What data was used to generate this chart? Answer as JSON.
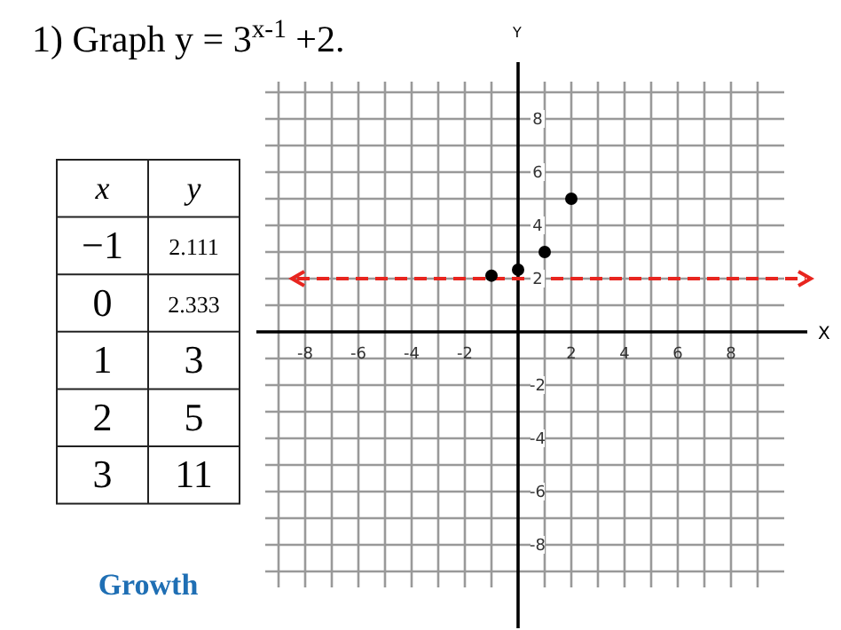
{
  "chart_data": {
    "type": "scatter",
    "title": "1) Graph y = 3$^{x-1}$ +2.",
    "xlabel": "X",
    "ylabel": "Y",
    "x": [
      -1,
      0,
      1,
      2
    ],
    "series": [
      {
        "color": "#000000",
        "values": [
          2.111,
          2.333,
          3,
          5
        ]
      }
    ],
    "xlim": [
      -9.5,
      10
    ],
    "ylim": [
      -9.6,
      9.4
    ],
    "xticks": [
      {
        "value": -9,
        "label": null
      },
      -8,
      {
        "value": -7,
        "label": null
      },
      -6,
      {
        "value": -5,
        "label": null
      },
      -4,
      {
        "value": -3,
        "label": null
      },
      -2,
      {
        "value": -1,
        "label": null
      },
      {
        "value": 1,
        "label": null
      },
      2,
      {
        "value": 3,
        "label": null
      },
      4,
      {
        "value": 5,
        "label": null
      },
      6,
      {
        "value": 7,
        "label": null
      },
      8,
      {
        "value": 9,
        "label": null
      }
    ],
    "yticks": [
      {
        "value": -9,
        "label": null
      },
      -8,
      {
        "value": -7,
        "label": null
      },
      -6,
      {
        "value": -5,
        "label": null
      },
      -4,
      {
        "value": -3,
        "label": null
      },
      -2,
      {
        "value": -1,
        "label": null
      },
      {
        "value": 1,
        "label": null
      },
      2,
      {
        "value": 3,
        "label": null
      },
      4,
      {
        "value": 5,
        "label": null
      },
      6,
      {
        "value": 7,
        "label": null
      },
      8,
      {
        "value": 9,
        "label": null
      }
    ],
    "grid": true,
    "marker": "circle",
    "ref_lines": [
      {
        "axis": "y",
        "value": 2,
        "color": "#e8251f",
        "line_style": "dashed"
      }
    ],
    "annotations": [
      "x",
      "y",
      "−1",
      "2.111",
      "0",
      "2.333",
      "1",
      "3",
      "2",
      "5",
      "3",
      "11",
      "Growth"
    ]
  }
}
